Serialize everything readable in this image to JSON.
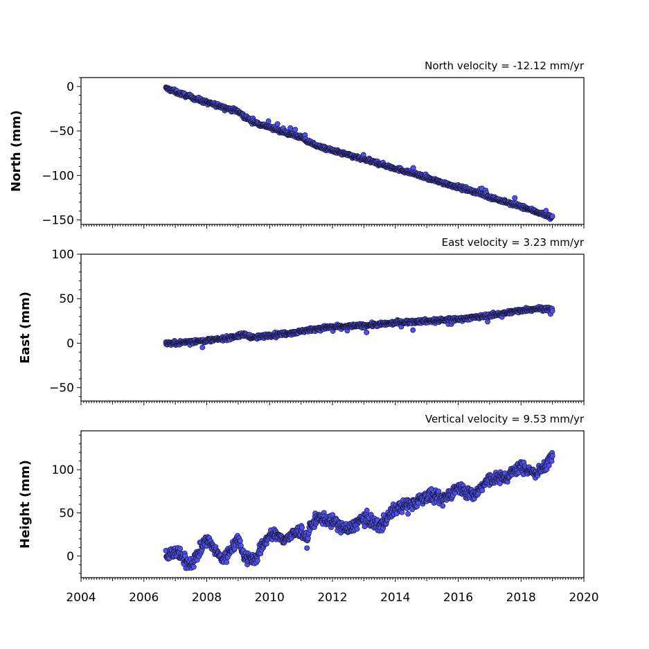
{
  "figure": {
    "background": "#ffffff"
  },
  "style": {
    "marker_fill": "#5050ee",
    "marker_edge": "#1a1a3a"
  },
  "chart_data": [
    {
      "id": "north",
      "type": "scatter",
      "title": "",
      "velocity_text": "North velocity = -12.12 mm/yr",
      "ylabel": "North (mm)",
      "xlim": [
        2004,
        2020
      ],
      "ylim": [
        -155,
        10
      ],
      "yticks": [
        0,
        -50,
        -100,
        -150
      ],
      "ytick_labels": [
        "0",
        "−50",
        "−100",
        "−150"
      ],
      "xtick_labels_shown": false,
      "series": [
        {
          "x": [
            2006.7,
            2007.0,
            2007.5,
            2008.0,
            2008.5,
            2009.0,
            2009.2,
            2009.5,
            2010.0,
            2010.5,
            2011.0,
            2011.2,
            2011.3,
            2011.6,
            2012.0,
            2012.5,
            2013.0,
            2013.5,
            2014.0,
            2014.5,
            2015.0,
            2015.5,
            2016.0,
            2016.5,
            2017.0,
            2017.5,
            2018.0,
            2018.5,
            2019.0
          ],
          "y": [
            -2,
            -6,
            -12,
            -18,
            -23,
            -28,
            -34,
            -40,
            -46,
            -52,
            -57,
            -62,
            -63,
            -68,
            -72,
            -77,
            -82,
            -87,
            -92,
            -97,
            -103,
            -108,
            -113,
            -118,
            -124,
            -130,
            -135,
            -141,
            -147
          ]
        }
      ]
    },
    {
      "id": "east",
      "type": "scatter",
      "title": "",
      "velocity_text": "East velocity = 3.23 mm/yr",
      "ylabel": "East (mm)",
      "xlim": [
        2004,
        2020
      ],
      "ylim": [
        -65,
        100
      ],
      "yticks": [
        100,
        50,
        0,
        -50
      ],
      "ytick_labels": [
        "100",
        "50",
        "0",
        "−50"
      ],
      "xtick_labels_shown": false,
      "series": [
        {
          "x": [
            2006.7,
            2007.0,
            2007.5,
            2008.0,
            2008.5,
            2009.0,
            2009.2,
            2009.5,
            2010.0,
            2010.5,
            2011.0,
            2011.2,
            2011.3,
            2011.6,
            2012.0,
            2012.5,
            2013.0,
            2013.5,
            2014.0,
            2014.5,
            2015.0,
            2015.5,
            2016.0,
            2016.5,
            2017.0,
            2017.5,
            2018.0,
            2018.5,
            2019.0
          ],
          "y": [
            0,
            0,
            2,
            3,
            5,
            8,
            10,
            6,
            9,
            11,
            13,
            15,
            15,
            17,
            18,
            19,
            20,
            21,
            23,
            24,
            25,
            26,
            27,
            29,
            31,
            34,
            37,
            39,
            38
          ]
        }
      ]
    },
    {
      "id": "height",
      "type": "scatter",
      "title": "",
      "velocity_text": "Vertical velocity = 9.53 mm/yr",
      "ylabel": "Height (mm)",
      "xlim": [
        2004,
        2020
      ],
      "ylim": [
        -25,
        145
      ],
      "yticks": [
        100,
        50,
        0
      ],
      "ytick_labels": [
        "100",
        "50",
        "0"
      ],
      "xticks": [
        2004,
        2006,
        2008,
        2010,
        2012,
        2014,
        2016,
        2018,
        2020
      ],
      "xtick_labels": [
        "2004",
        "2006",
        "2008",
        "2010",
        "2012",
        "2014",
        "2016",
        "2018",
        "2020"
      ],
      "xtick_labels_shown": true,
      "series": [
        {
          "x": [
            2006.7,
            2007.0,
            2007.5,
            2008.0,
            2008.5,
            2009.0,
            2009.2,
            2009.5,
            2010.0,
            2010.5,
            2011.0,
            2011.2,
            2011.3,
            2011.6,
            2012.0,
            2012.5,
            2013.0,
            2013.5,
            2014.0,
            2014.5,
            2015.0,
            2015.5,
            2016.0,
            2016.5,
            2017.0,
            2017.5,
            2018.0,
            2018.5,
            2019.0
          ],
          "y": [
            0,
            5,
            -10,
            20,
            -5,
            20,
            0,
            -5,
            25,
            20,
            30,
            20,
            35,
            45,
            40,
            30,
            45,
            35,
            55,
            60,
            70,
            65,
            80,
            70,
            90,
            90,
            105,
            95,
            115
          ]
        }
      ]
    }
  ]
}
